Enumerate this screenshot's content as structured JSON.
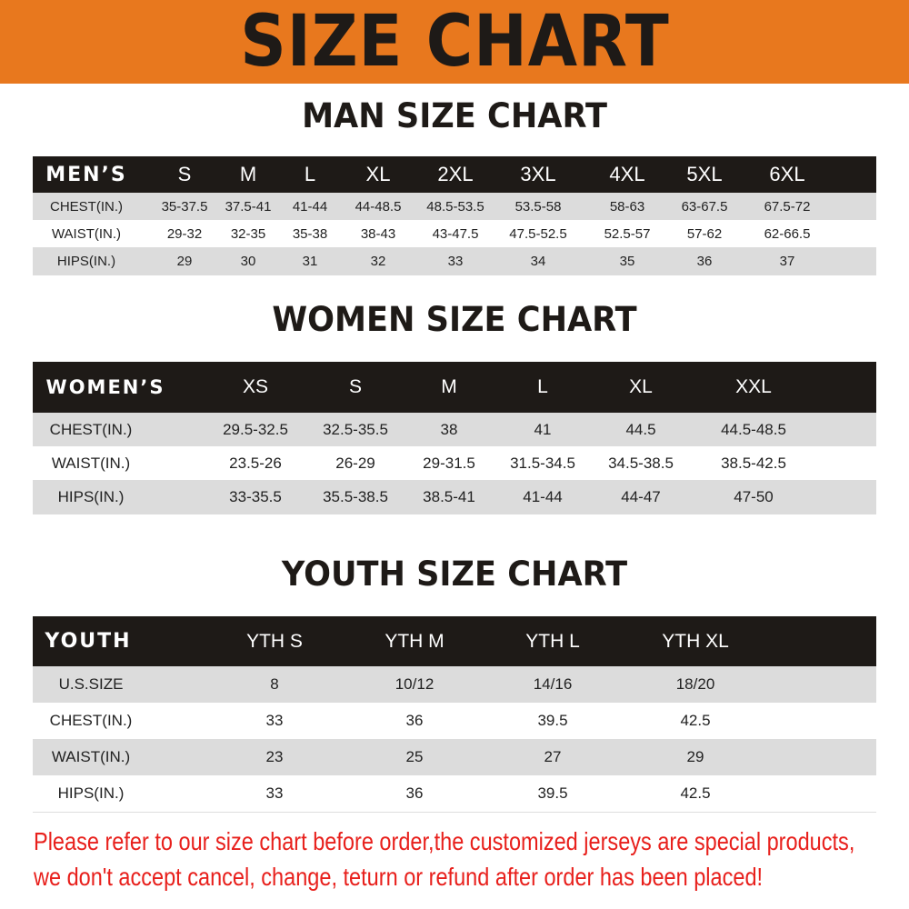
{
  "banner_title": "SIZE CHART",
  "colors": {
    "banner": "#E8781E",
    "header_row": "#1e1a17",
    "stripe": "#dcdcdc",
    "notice": "#e8201c"
  },
  "men": {
    "title": "MAN SIZE CHART",
    "header_label": "MEN’S",
    "sizes": [
      "S",
      "M",
      "L",
      "XL",
      "2XL",
      "3XL",
      "4XL",
      "5XL",
      "6XL"
    ],
    "rows": [
      {
        "label": "CHEST(IN.)",
        "values": [
          "35-37.5",
          "37.5-41",
          "41-44",
          "44-48.5",
          "48.5-53.5",
          "53.5-58",
          "58-63",
          "63-67.5",
          "67.5-72"
        ]
      },
      {
        "label": "WAIST(IN.)",
        "values": [
          "29-32",
          "32-35",
          "35-38",
          "38-43",
          "43-47.5",
          "47.5-52.5",
          "52.5-57",
          "57-62",
          "62-66.5"
        ]
      },
      {
        "label": "HIPS(IN.)",
        "values": [
          "29",
          "30",
          "31",
          "32",
          "33",
          "34",
          "35",
          "36",
          "37"
        ]
      }
    ]
  },
  "women": {
    "title": "WOMEN SIZE CHART",
    "header_label": "WOMEN’S",
    "sizes": [
      "XS",
      "S",
      "M",
      "L",
      "XL",
      "XXL"
    ],
    "rows": [
      {
        "label": "CHEST(IN.)",
        "values": [
          "29.5-32.5",
          "32.5-35.5",
          "38",
          "41",
          "44.5",
          "44.5-48.5"
        ]
      },
      {
        "label": "WAIST(IN.)",
        "values": [
          "23.5-26",
          "26-29",
          "29-31.5",
          "31.5-34.5",
          "34.5-38.5",
          "38.5-42.5"
        ]
      },
      {
        "label": "HIPS(IN.)",
        "values": [
          "33-35.5",
          "35.5-38.5",
          "38.5-41",
          "41-44",
          "44-47",
          "47-50"
        ]
      }
    ]
  },
  "youth": {
    "title": "YOUTH SIZE CHART",
    "header_label": "YOUTH",
    "sizes": [
      "YTH S",
      "YTH M",
      "YTH L",
      "YTH XL"
    ],
    "rows": [
      {
        "label": "U.S.SIZE",
        "values": [
          "8",
          "10/12",
          "14/16",
          "18/20"
        ]
      },
      {
        "label": "CHEST(IN.)",
        "values": [
          "33",
          "36",
          "39.5",
          "42.5"
        ]
      },
      {
        "label": "WAIST(IN.)",
        "values": [
          "23",
          "25",
          "27",
          "29"
        ]
      },
      {
        "label": "HIPS(IN.)",
        "values": [
          "33",
          "36",
          "39.5",
          "42.5"
        ]
      }
    ]
  },
  "notice": {
    "line1": "Please refer to our size chart before order,the customized jerseys are special products,",
    "line2": "we don't accept cancel, change, teturn or refund after order has been placed!"
  }
}
